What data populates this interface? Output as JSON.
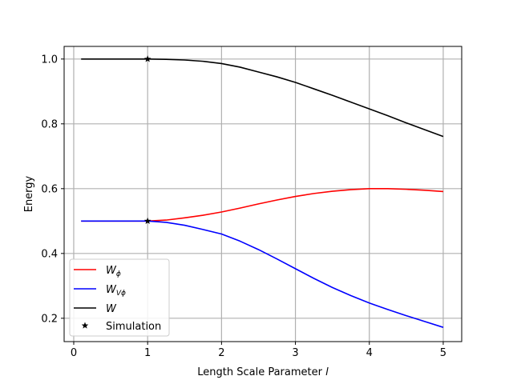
{
  "chart_data": {
    "type": "line",
    "xlabel": "Length Scale Parameter",
    "xlabel_var": "l",
    "ylabel": "Energy",
    "xlim": [
      -0.13,
      5.25
    ],
    "ylim": [
      0.128,
      1.039
    ],
    "xticks": [
      0,
      1,
      2,
      3,
      4,
      5
    ],
    "xtick_labels": [
      "0",
      "1",
      "2",
      "3",
      "4",
      "5"
    ],
    "yticks": [
      0.2,
      0.4,
      0.6,
      0.8,
      1.0
    ],
    "ytick_labels": [
      "0.2",
      "0.4",
      "0.6",
      "0.8",
      "1.0"
    ],
    "grid": true,
    "legend_position": "lower-left",
    "series": [
      {
        "name": "W",
        "name_sub": "ϕ",
        "color": "#ff0000",
        "x": [
          0.1,
          0.5,
          1.0,
          1.25,
          1.5,
          1.75,
          2.0,
          2.25,
          2.5,
          2.75,
          3.0,
          3.25,
          3.5,
          3.75,
          4.0,
          4.25,
          4.5,
          4.75,
          5.0
        ],
        "y": [
          0.5,
          0.5,
          0.5,
          0.503,
          0.51,
          0.518,
          0.528,
          0.54,
          0.553,
          0.565,
          0.576,
          0.585,
          0.592,
          0.597,
          0.6,
          0.6,
          0.598,
          0.595,
          0.591
        ]
      },
      {
        "name": "W",
        "name_sub": "Vϕ",
        "color": "#0000ff",
        "x": [
          0.1,
          0.5,
          1.0,
          1.25,
          1.5,
          1.75,
          2.0,
          2.25,
          2.5,
          2.75,
          3.0,
          3.25,
          3.5,
          3.75,
          4.0,
          4.25,
          4.5,
          4.75,
          5.0
        ],
        "y": [
          0.5,
          0.5,
          0.5,
          0.496,
          0.487,
          0.474,
          0.46,
          0.438,
          0.412,
          0.383,
          0.353,
          0.323,
          0.295,
          0.27,
          0.247,
          0.227,
          0.208,
          0.19,
          0.172
        ]
      },
      {
        "name": "W",
        "name_sub": "",
        "color": "#000000",
        "x": [
          0.1,
          0.5,
          1.0,
          1.25,
          1.5,
          1.75,
          2.0,
          2.25,
          2.5,
          2.75,
          3.0,
          3.25,
          3.5,
          3.75,
          4.0,
          4.25,
          4.5,
          4.75,
          5.0
        ],
        "y": [
          1.0,
          1.0,
          1.0,
          0.999,
          0.997,
          0.993,
          0.986,
          0.975,
          0.96,
          0.945,
          0.928,
          0.908,
          0.888,
          0.867,
          0.846,
          0.825,
          0.803,
          0.782,
          0.761
        ]
      }
    ],
    "markers": {
      "name": "Simulation",
      "color": "#000000",
      "points": [
        {
          "x": 1.0,
          "y": 1.0
        },
        {
          "x": 1.0,
          "y": 0.5
        }
      ]
    }
  }
}
